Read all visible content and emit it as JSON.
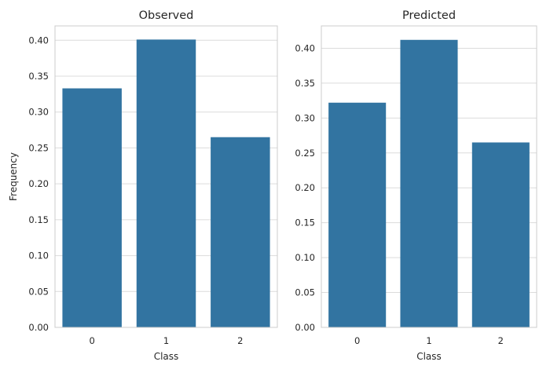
{
  "chart_data": [
    {
      "type": "bar",
      "title": "Observed",
      "xlabel": "Class",
      "ylabel": "Frequency",
      "categories": [
        "0",
        "1",
        "2"
      ],
      "values": [
        0.333,
        0.401,
        0.265
      ],
      "ylim": [
        0,
        0.42
      ],
      "yticks": [
        "0.00",
        "0.05",
        "0.10",
        "0.15",
        "0.20",
        "0.25",
        "0.30",
        "0.35",
        "0.40"
      ],
      "grid": true,
      "color": "#3274a1"
    },
    {
      "type": "bar",
      "title": "Predicted",
      "xlabel": "Class",
      "ylabel": "",
      "categories": [
        "0",
        "1",
        "2"
      ],
      "values": [
        0.322,
        0.412,
        0.265
      ],
      "ylim": [
        0,
        0.432
      ],
      "yticks": [
        "0.00",
        "0.05",
        "0.10",
        "0.15",
        "0.20",
        "0.25",
        "0.30",
        "0.35",
        "0.40"
      ],
      "grid": true,
      "color": "#3274a1"
    }
  ]
}
